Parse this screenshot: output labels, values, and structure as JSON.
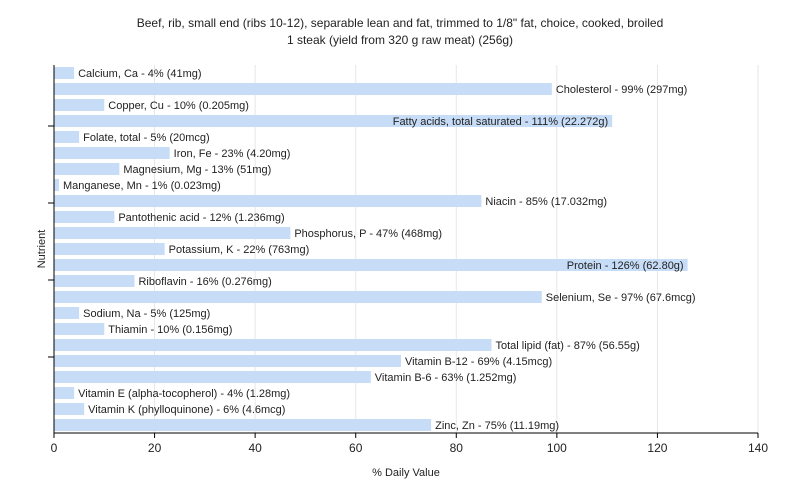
{
  "chart_data": {
    "type": "bar",
    "orientation": "horizontal",
    "title": "Beef, rib, small end (ribs 10-12), separable lean and fat, trimmed to 1/8\" fat, choice, cooked, broiled",
    "subtitle": "1 steak (yield from 320 g raw meat) (256g)",
    "xlabel": "% Daily Value",
    "ylabel": "Nutrient",
    "xlim": [
      0,
      140
    ],
    "xticks": [
      0,
      20,
      40,
      60,
      80,
      100,
      120,
      140
    ],
    "grid": "vertical",
    "bar_color": "#c6dcf7",
    "categories": [
      "Calcium, Ca",
      "Cholesterol",
      "Copper, Cu",
      "Fatty acids, total saturated",
      "Folate, total",
      "Iron, Fe",
      "Magnesium, Mg",
      "Manganese, Mn",
      "Niacin",
      "Pantothenic acid",
      "Phosphorus, P",
      "Potassium, K",
      "Protein",
      "Riboflavin",
      "Selenium, Se",
      "Sodium, Na",
      "Thiamin",
      "Total lipid (fat)",
      "Vitamin B-12",
      "Vitamin B-6",
      "Vitamin E (alpha-tocopherol)",
      "Vitamin K (phylloquinone)",
      "Zinc, Zn"
    ],
    "values": [
      4,
      99,
      10,
      111,
      5,
      23,
      13,
      1,
      85,
      12,
      47,
      22,
      126,
      16,
      97,
      5,
      10,
      87,
      69,
      63,
      4,
      6,
      75
    ],
    "labels": [
      "Calcium, Ca - 4% (41mg)",
      "Cholesterol - 99% (297mg)",
      "Copper, Cu - 10% (0.205mg)",
      "Fatty acids, total saturated - 111% (22.272g)",
      "Folate, total - 5% (20mcg)",
      "Iron, Fe - 23% (4.20mg)",
      "Magnesium, Mg - 13% (51mg)",
      "Manganese, Mn - 1% (0.023mg)",
      "Niacin - 85% (17.032mg)",
      "Pantothenic acid - 12% (1.236mg)",
      "Phosphorus, P - 47% (468mg)",
      "Potassium, K - 22% (763mg)",
      "Protein - 126% (62.80g)",
      "Riboflavin - 16% (0.276mg)",
      "Selenium, Se - 97% (67.6mcg)",
      "Sodium, Na - 5% (125mg)",
      "Thiamin - 10% (0.156mg)",
      "Total lipid (fat) - 87% (56.55g)",
      "Vitamin B-12 - 69% (4.15mcg)",
      "Vitamin B-6 - 63% (1.252mg)",
      "Vitamin E (alpha-tocopherol) - 4% (1.28mg)",
      "Vitamin K (phylloquinone) - 6% (4.6mcg)",
      "Zinc, Zn - 75% (11.19mg)"
    ]
  }
}
